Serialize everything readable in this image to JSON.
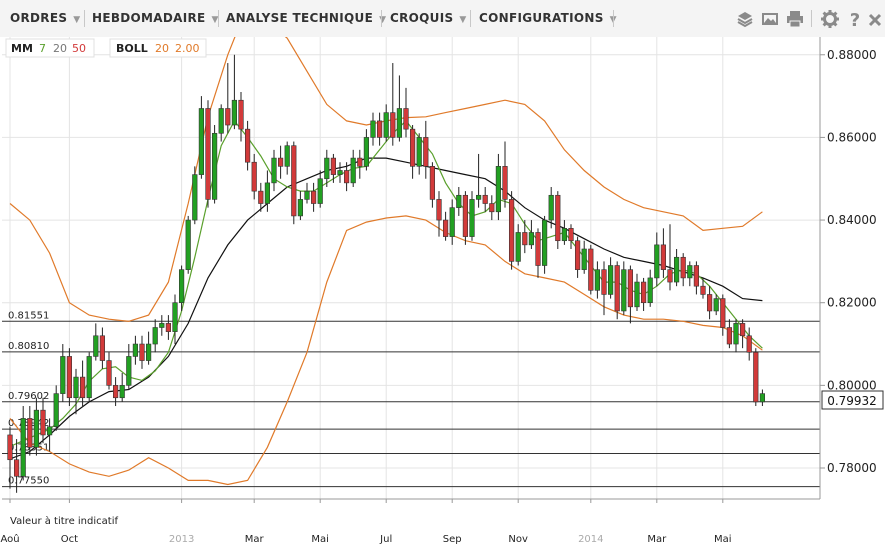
{
  "toolbar": {
    "menus": [
      {
        "label": "ORDRES"
      },
      {
        "label": "HEBDOMADAIRE"
      },
      {
        "label": "ANALYSE TECHNIQUE"
      },
      {
        "label": "CROQUIS"
      },
      {
        "label": "CONFIGURATIONS"
      }
    ],
    "icons": [
      "layers-icon",
      "image-icon",
      "print-icon",
      "gear-icon",
      "help-icon",
      "close-icon"
    ]
  },
  "legend": {
    "ma_label": "MM",
    "ma_p1": "7",
    "ma_p2": "20",
    "ma_p3": "50",
    "boll_label": "BOLL",
    "boll_p1": "20",
    "boll_p2": "2.00"
  },
  "colors": {
    "up": "#22a022",
    "down": "#d23a3a",
    "ma7": "#5aa02c",
    "ma20": "#111111",
    "boll": "#e07a2a",
    "grid": "#e4e4e4",
    "hline": "#333333"
  },
  "note": "Valeur à titre indicatif",
  "chart_data": {
    "type": "candlestick",
    "y_axis_ticks": [
      "0.78000",
      "0.80000",
      "0.82000",
      "0.84000",
      "0.86000",
      "0.88000"
    ],
    "ylim": [
      0.7725,
      0.8843
    ],
    "current_price": "0.79932",
    "x_axis_labels": [
      "Aoû",
      "Oct",
      "2013",
      "Mar",
      "Mai",
      "Jul",
      "Sep",
      "Nov",
      "2014",
      "Mar",
      "Mai"
    ],
    "horizontal_levels": [
      {
        "label": "0.81551",
        "value": 0.81551
      },
      {
        "label": "0.80810",
        "value": 0.8081
      },
      {
        "label": "0.79602",
        "value": 0.79602
      },
      {
        "label": "0.78942",
        "value": 0.78942
      },
      {
        "label": "0.78351",
        "value": 0.78351
      },
      {
        "label": "0.77550",
        "value": 0.7755
      }
    ],
    "candles": [
      [
        0.788,
        0.782,
        0.79,
        0.775
      ],
      [
        0.782,
        0.778,
        0.787,
        0.774
      ],
      [
        0.778,
        0.792,
        0.795,
        0.777
      ],
      [
        0.792,
        0.785,
        0.795,
        0.783
      ],
      [
        0.785,
        0.794,
        0.797,
        0.783
      ],
      [
        0.794,
        0.788,
        0.797,
        0.786
      ],
      [
        0.788,
        0.79,
        0.792,
        0.784
      ],
      [
        0.79,
        0.798,
        0.8,
        0.789
      ],
      [
        0.798,
        0.807,
        0.81,
        0.796
      ],
      [
        0.807,
        0.797,
        0.809,
        0.795
      ],
      [
        0.797,
        0.802,
        0.804,
        0.793
      ],
      [
        0.802,
        0.797,
        0.806,
        0.795
      ],
      [
        0.797,
        0.807,
        0.808,
        0.796
      ],
      [
        0.807,
        0.812,
        0.815,
        0.806
      ],
      [
        0.812,
        0.806,
        0.814,
        0.804
      ],
      [
        0.806,
        0.8,
        0.808,
        0.799
      ],
      [
        0.8,
        0.797,
        0.802,
        0.795
      ],
      [
        0.797,
        0.8,
        0.803,
        0.796
      ],
      [
        0.8,
        0.807,
        0.81,
        0.799
      ],
      [
        0.807,
        0.81,
        0.812,
        0.805
      ],
      [
        0.81,
        0.806,
        0.812,
        0.804
      ],
      [
        0.806,
        0.81,
        0.813,
        0.805
      ],
      [
        0.81,
        0.814,
        0.816,
        0.808
      ],
      [
        0.814,
        0.815,
        0.817,
        0.812
      ],
      [
        0.815,
        0.813,
        0.817,
        0.811
      ],
      [
        0.813,
        0.82,
        0.822,
        0.81
      ],
      [
        0.82,
        0.828,
        0.829,
        0.818
      ],
      [
        0.828,
        0.84,
        0.841,
        0.827
      ],
      [
        0.84,
        0.851,
        0.853,
        0.839
      ],
      [
        0.851,
        0.867,
        0.87,
        0.85
      ],
      [
        0.867,
        0.845,
        0.869,
        0.843
      ],
      [
        0.845,
        0.861,
        0.863,
        0.844
      ],
      [
        0.861,
        0.867,
        0.868,
        0.859
      ],
      [
        0.867,
        0.863,
        0.878,
        0.861
      ],
      [
        0.863,
        0.869,
        0.88,
        0.862
      ],
      [
        0.869,
        0.862,
        0.871,
        0.859
      ],
      [
        0.862,
        0.854,
        0.864,
        0.852
      ],
      [
        0.854,
        0.847,
        0.856,
        0.845
      ],
      [
        0.847,
        0.844,
        0.849,
        0.842
      ],
      [
        0.844,
        0.849,
        0.852,
        0.842
      ],
      [
        0.849,
        0.855,
        0.857,
        0.847
      ],
      [
        0.855,
        0.853,
        0.858,
        0.85
      ],
      [
        0.853,
        0.858,
        0.859,
        0.851
      ],
      [
        0.858,
        0.841,
        0.859,
        0.839
      ],
      [
        0.841,
        0.845,
        0.847,
        0.84
      ],
      [
        0.845,
        0.847,
        0.849,
        0.844
      ],
      [
        0.847,
        0.844,
        0.849,
        0.842
      ],
      [
        0.844,
        0.85,
        0.852,
        0.843
      ],
      [
        0.85,
        0.855,
        0.857,
        0.848
      ],
      [
        0.855,
        0.851,
        0.856,
        0.849
      ],
      [
        0.851,
        0.852,
        0.854,
        0.849
      ],
      [
        0.852,
        0.849,
        0.854,
        0.847
      ],
      [
        0.849,
        0.855,
        0.857,
        0.848
      ],
      [
        0.855,
        0.853,
        0.857,
        0.85
      ],
      [
        0.853,
        0.86,
        0.862,
        0.852
      ],
      [
        0.86,
        0.864,
        0.866,
        0.858
      ],
      [
        0.864,
        0.86,
        0.866,
        0.858
      ],
      [
        0.86,
        0.866,
        0.868,
        0.859
      ],
      [
        0.866,
        0.86,
        0.878,
        0.858
      ],
      [
        0.86,
        0.867,
        0.875,
        0.859
      ],
      [
        0.867,
        0.862,
        0.872,
        0.86
      ],
      [
        0.862,
        0.853,
        0.863,
        0.85
      ],
      [
        0.853,
        0.86,
        0.861,
        0.851
      ],
      [
        0.86,
        0.853,
        0.864,
        0.85
      ],
      [
        0.853,
        0.845,
        0.854,
        0.843
      ],
      [
        0.845,
        0.84,
        0.847,
        0.836
      ],
      [
        0.84,
        0.836,
        0.842,
        0.835
      ],
      [
        0.836,
        0.843,
        0.845,
        0.834
      ],
      [
        0.843,
        0.846,
        0.848,
        0.841
      ],
      [
        0.846,
        0.836,
        0.847,
        0.834
      ],
      [
        0.836,
        0.845,
        0.847,
        0.835
      ],
      [
        0.845,
        0.846,
        0.856,
        0.843
      ],
      [
        0.846,
        0.844,
        0.848,
        0.842
      ],
      [
        0.844,
        0.842,
        0.846,
        0.84
      ],
      [
        0.842,
        0.853,
        0.856,
        0.84
      ],
      [
        0.853,
        0.845,
        0.859,
        0.843
      ],
      [
        0.845,
        0.83,
        0.847,
        0.828
      ],
      [
        0.83,
        0.837,
        0.839,
        0.829
      ],
      [
        0.837,
        0.834,
        0.84,
        0.832
      ],
      [
        0.834,
        0.837,
        0.84,
        0.833
      ],
      [
        0.837,
        0.829,
        0.838,
        0.826
      ],
      [
        0.829,
        0.84,
        0.841,
        0.827
      ],
      [
        0.84,
        0.846,
        0.848,
        0.838
      ],
      [
        0.846,
        0.835,
        0.847,
        0.833
      ],
      [
        0.835,
        0.838,
        0.84,
        0.834
      ],
      [
        0.838,
        0.835,
        0.839,
        0.833
      ],
      [
        0.835,
        0.828,
        0.836,
        0.826
      ],
      [
        0.828,
        0.833,
        0.835,
        0.827
      ],
      [
        0.833,
        0.823,
        0.834,
        0.822
      ],
      [
        0.823,
        0.828,
        0.83,
        0.821
      ],
      [
        0.828,
        0.822,
        0.83,
        0.817
      ],
      [
        0.822,
        0.829,
        0.831,
        0.821
      ],
      [
        0.829,
        0.818,
        0.83,
        0.816
      ],
      [
        0.818,
        0.828,
        0.83,
        0.817
      ],
      [
        0.828,
        0.819,
        0.829,
        0.815
      ],
      [
        0.819,
        0.825,
        0.827,
        0.818
      ],
      [
        0.825,
        0.82,
        0.826,
        0.818
      ],
      [
        0.82,
        0.826,
        0.828,
        0.819
      ],
      [
        0.826,
        0.834,
        0.837,
        0.824
      ],
      [
        0.834,
        0.828,
        0.838,
        0.826
      ],
      [
        0.828,
        0.825,
        0.839,
        0.823
      ],
      [
        0.825,
        0.831,
        0.833,
        0.824
      ],
      [
        0.831,
        0.826,
        0.832,
        0.824
      ],
      [
        0.826,
        0.829,
        0.83,
        0.824
      ],
      [
        0.829,
        0.824,
        0.83,
        0.822
      ],
      [
        0.824,
        0.822,
        0.826,
        0.821
      ],
      [
        0.822,
        0.818,
        0.824,
        0.816
      ],
      [
        0.818,
        0.821,
        0.822,
        0.817
      ],
      [
        0.821,
        0.814,
        0.822,
        0.812
      ],
      [
        0.814,
        0.81,
        0.816,
        0.809
      ],
      [
        0.81,
        0.815,
        0.816,
        0.808
      ],
      [
        0.815,
        0.812,
        0.816,
        0.809
      ],
      [
        0.812,
        0.808,
        0.814,
        0.806
      ],
      [
        0.808,
        0.796,
        0.809,
        0.795
      ],
      [
        0.796,
        0.798,
        0.799,
        0.795
      ]
    ],
    "ma7": [
      [
        0,
        0.7852
      ],
      [
        2,
        0.7866
      ],
      [
        4,
        0.788
      ],
      [
        6,
        0.7894
      ],
      [
        8,
        0.792
      ],
      [
        10,
        0.7955
      ],
      [
        12,
        0.801
      ],
      [
        14,
        0.804
      ],
      [
        16,
        0.8045
      ],
      [
        18,
        0.802
      ],
      [
        20,
        0.8012
      ],
      [
        22,
        0.8035
      ],
      [
        24,
        0.808
      ],
      [
        26,
        0.818
      ],
      [
        28,
        0.831
      ],
      [
        30,
        0.845
      ],
      [
        32,
        0.858
      ],
      [
        34,
        0.864
      ],
      [
        36,
        0.86
      ],
      [
        38,
        0.8555
      ],
      [
        40,
        0.85
      ],
      [
        42,
        0.848
      ],
      [
        44,
        0.847
      ],
      [
        46,
        0.847
      ],
      [
        48,
        0.849
      ],
      [
        50,
        0.851
      ],
      [
        52,
        0.8525
      ],
      [
        54,
        0.853
      ],
      [
        56,
        0.857
      ],
      [
        58,
        0.861
      ],
      [
        60,
        0.864
      ],
      [
        62,
        0.86
      ],
      [
        64,
        0.856
      ],
      [
        66,
        0.849
      ],
      [
        68,
        0.844
      ],
      [
        70,
        0.841
      ],
      [
        72,
        0.842
      ],
      [
        74,
        0.845
      ],
      [
        76,
        0.844
      ],
      [
        78,
        0.839
      ],
      [
        80,
        0.835
      ],
      [
        82,
        0.836
      ],
      [
        84,
        0.837
      ],
      [
        86,
        0.833
      ],
      [
        88,
        0.829
      ],
      [
        90,
        0.825
      ],
      [
        92,
        0.825
      ],
      [
        94,
        0.823
      ],
      [
        96,
        0.822
      ],
      [
        98,
        0.824
      ],
      [
        100,
        0.827
      ],
      [
        102,
        0.828
      ],
      [
        104,
        0.827
      ],
      [
        106,
        0.824
      ],
      [
        108,
        0.82
      ],
      [
        110,
        0.816
      ],
      [
        112,
        0.812
      ],
      [
        114,
        0.809
      ]
    ],
    "ma20": [
      [
        0,
        0.7822
      ],
      [
        3,
        0.784
      ],
      [
        6,
        0.788
      ],
      [
        9,
        0.7925
      ],
      [
        12,
        0.796
      ],
      [
        15,
        0.7985
      ],
      [
        18,
        0.799
      ],
      [
        21,
        0.802
      ],
      [
        24,
        0.807
      ],
      [
        27,
        0.815
      ],
      [
        30,
        0.826
      ],
      [
        33,
        0.834
      ],
      [
        36,
        0.84
      ],
      [
        39,
        0.844
      ],
      [
        42,
        0.848
      ],
      [
        45,
        0.85
      ],
      [
        48,
        0.852
      ],
      [
        51,
        0.853
      ],
      [
        54,
        0.855
      ],
      [
        57,
        0.855
      ],
      [
        60,
        0.854
      ],
      [
        63,
        0.853
      ],
      [
        66,
        0.852
      ],
      [
        69,
        0.851
      ],
      [
        72,
        0.85
      ],
      [
        75,
        0.847
      ],
      [
        78,
        0.843
      ],
      [
        81,
        0.84
      ],
      [
        84,
        0.838
      ],
      [
        87,
        0.8355
      ],
      [
        90,
        0.833
      ],
      [
        93,
        0.831
      ],
      [
        96,
        0.83
      ],
      [
        99,
        0.829
      ],
      [
        102,
        0.8275
      ],
      [
        105,
        0.826
      ],
      [
        108,
        0.824
      ],
      [
        111,
        0.821
      ],
      [
        114,
        0.8205
      ]
    ],
    "boll_upper": [
      [
        0,
        0.844
      ],
      [
        3,
        0.84
      ],
      [
        6,
        0.832
      ],
      [
        9,
        0.82
      ],
      [
        12,
        0.817
      ],
      [
        15,
        0.816
      ],
      [
        18,
        0.8155
      ],
      [
        21,
        0.817
      ],
      [
        24,
        0.825
      ],
      [
        27,
        0.844
      ],
      [
        30,
        0.865
      ],
      [
        33,
        0.88
      ],
      [
        36,
        0.892
      ],
      [
        39,
        0.888
      ],
      [
        42,
        0.884
      ],
      [
        45,
        0.876
      ],
      [
        48,
        0.868
      ],
      [
        51,
        0.864
      ],
      [
        54,
        0.863
      ],
      [
        57,
        0.864
      ],
      [
        60,
        0.8648
      ],
      [
        63,
        0.865
      ],
      [
        66,
        0.866
      ],
      [
        69,
        0.867
      ],
      [
        72,
        0.868
      ],
      [
        75,
        0.869
      ],
      [
        78,
        0.868
      ],
      [
        81,
        0.864
      ],
      [
        84,
        0.857
      ],
      [
        87,
        0.852
      ],
      [
        90,
        0.848
      ],
      [
        93,
        0.845
      ],
      [
        96,
        0.843
      ],
      [
        99,
        0.842
      ],
      [
        102,
        0.841
      ],
      [
        105,
        0.8375
      ],
      [
        108,
        0.838
      ],
      [
        111,
        0.8385
      ],
      [
        114,
        0.842
      ]
    ],
    "boll_lower": [
      [
        0,
        0.792
      ],
      [
        3,
        0.786
      ],
      [
        6,
        0.784
      ],
      [
        9,
        0.781
      ],
      [
        12,
        0.779
      ],
      [
        15,
        0.778
      ],
      [
        18,
        0.7795
      ],
      [
        21,
        0.7825
      ],
      [
        24,
        0.78
      ],
      [
        27,
        0.777
      ],
      [
        30,
        0.777
      ],
      [
        33,
        0.776
      ],
      [
        36,
        0.777
      ],
      [
        39,
        0.785
      ],
      [
        42,
        0.796
      ],
      [
        45,
        0.808
      ],
      [
        48,
        0.825
      ],
      [
        51,
        0.8375
      ],
      [
        54,
        0.8395
      ],
      [
        57,
        0.8405
      ],
      [
        60,
        0.841
      ],
      [
        63,
        0.84
      ],
      [
        66,
        0.837
      ],
      [
        69,
        0.835
      ],
      [
        72,
        0.834
      ],
      [
        75,
        0.83
      ],
      [
        78,
        0.827
      ],
      [
        81,
        0.826
      ],
      [
        84,
        0.825
      ],
      [
        87,
        0.822
      ],
      [
        90,
        0.819
      ],
      [
        93,
        0.817
      ],
      [
        96,
        0.816
      ],
      [
        99,
        0.816
      ],
      [
        102,
        0.8155
      ],
      [
        105,
        0.8145
      ],
      [
        108,
        0.814
      ],
      [
        111,
        0.812
      ],
      [
        114,
        0.8085
      ]
    ]
  }
}
